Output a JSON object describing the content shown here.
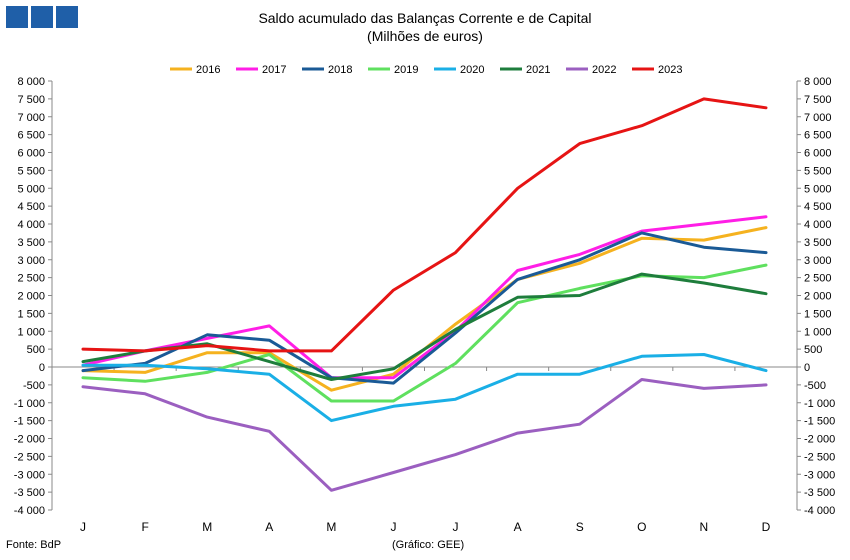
{
  "header": {
    "title": "Saldo acumulado das Balanças Corrente e de Capital",
    "subtitle": "(Milhões de euros)"
  },
  "footer": {
    "source": "Fonte: BdP",
    "credit": "(Gráfico: GEE)"
  },
  "logo": {
    "color": "#1f5fa8"
  },
  "chart_data": {
    "type": "line",
    "title": "Saldo acumulado das Balanças Corrente e de Capital",
    "subtitle": "(Milhões de euros)",
    "categories": [
      "J",
      "F",
      "M",
      "A",
      "M",
      "J",
      "J",
      "A",
      "S",
      "O",
      "N",
      "D"
    ],
    "ylim": [
      -4000,
      8000
    ],
    "yticks": [
      "8 000",
      "7 500",
      "7 000",
      "6 500",
      "6 000",
      "5 500",
      "5 000",
      "4 500",
      "4 000",
      "3 500",
      "3 000",
      "2 500",
      "2 000",
      "1 500",
      "1 000",
      "500",
      "0",
      "-500",
      "-1 000",
      "-1 500",
      "-2 000",
      "-2 500",
      "-3 000",
      "-3 500",
      "-4 000"
    ],
    "legend_position": "top",
    "grid": false,
    "series": [
      {
        "name": "2016",
        "color": "#f5b21f",
        "values": [
          -100,
          -150,
          400,
          400,
          -650,
          -200,
          1200,
          2450,
          2900,
          3600,
          3550,
          3900
        ]
      },
      {
        "name": "2017",
        "color": "#ff1ee6",
        "values": [
          50,
          450,
          800,
          1150,
          -300,
          -300,
          1000,
          2700,
          3150,
          3800,
          4000,
          4200
        ]
      },
      {
        "name": "2018",
        "color": "#1a5a96",
        "values": [
          -100,
          100,
          900,
          750,
          -300,
          -450,
          950,
          2450,
          3000,
          3750,
          3350,
          3200
        ]
      },
      {
        "name": "2019",
        "color": "#5fe05f",
        "values": [
          -300,
          -400,
          -150,
          350,
          -950,
          -950,
          100,
          1800,
          2200,
          2550,
          2500,
          2850
        ]
      },
      {
        "name": "2020",
        "color": "#1aafe6",
        "values": [
          50,
          50,
          -50,
          -200,
          -1500,
          -1100,
          -900,
          -200,
          -200,
          300,
          350,
          -100
        ]
      },
      {
        "name": "2021",
        "color": "#1e7d3c",
        "values": [
          150,
          450,
          650,
          150,
          -350,
          -50,
          1050,
          1950,
          2000,
          2600,
          2350,
          2050
        ]
      },
      {
        "name": "2022",
        "color": "#9b5fc0",
        "values": [
          -550,
          -750,
          -1400,
          -1800,
          -3450,
          -2950,
          -2450,
          -1850,
          -1600,
          -350,
          -600,
          -500
        ]
      },
      {
        "name": "2023",
        "color": "#e61414",
        "values": [
          500,
          450,
          600,
          450,
          450,
          2150,
          3200,
          5000,
          6250,
          6750,
          7500,
          7250
        ]
      }
    ]
  }
}
